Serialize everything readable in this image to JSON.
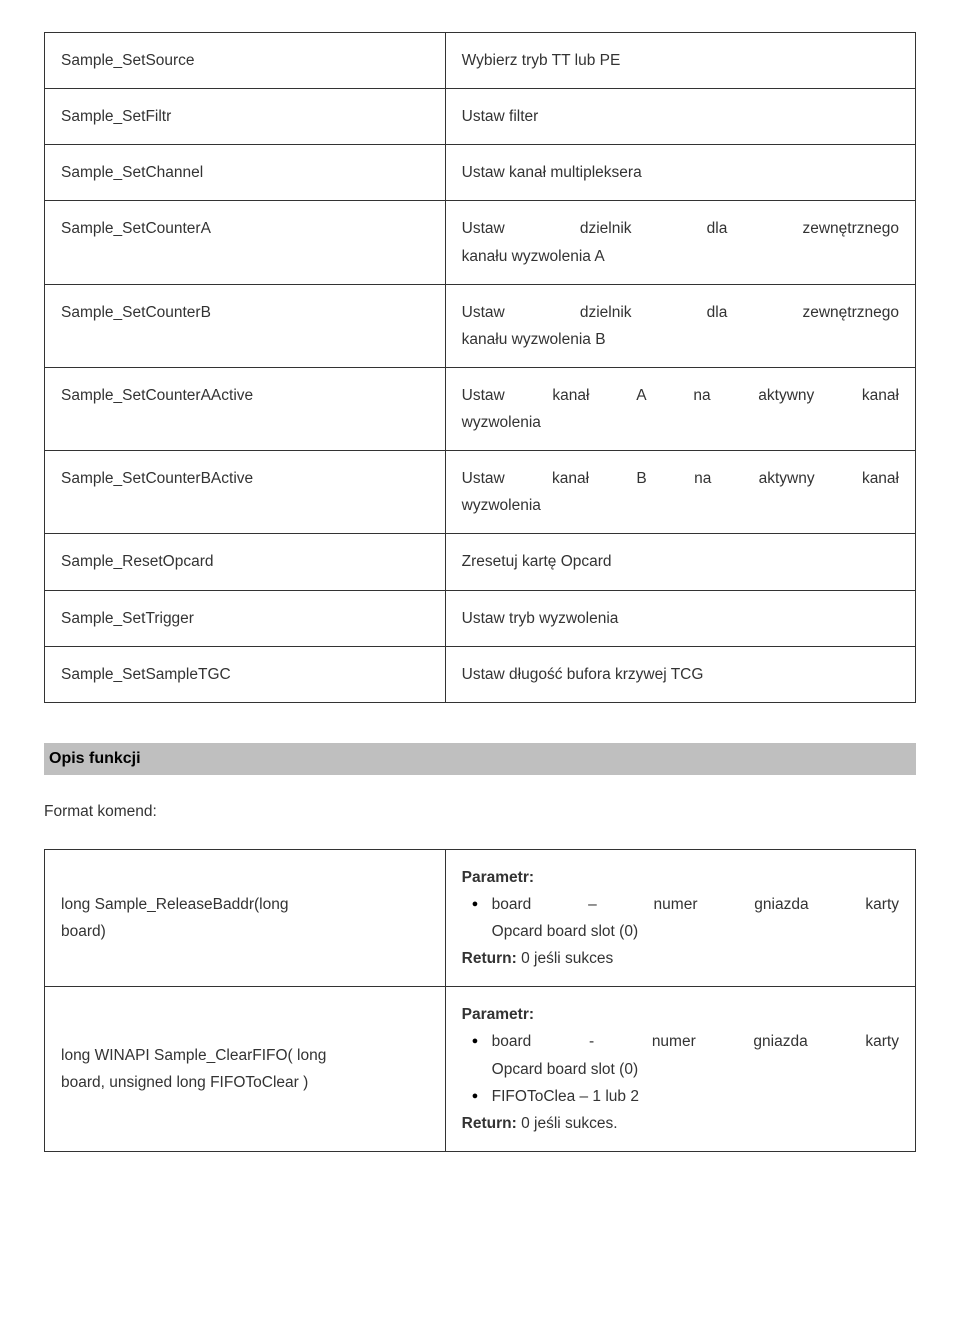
{
  "tableA": {
    "border_color": "#333333",
    "text_color": "#333333",
    "font_family": "Verdana",
    "cell_padding": 14,
    "col_widths_pct": [
      46,
      54
    ],
    "rows": [
      {
        "l": "Sample_SetSource",
        "r_mode": "plain",
        "r": "Wybierz tryb TT lub PE"
      },
      {
        "l": "Sample_SetFiltr",
        "r_mode": "plain",
        "r": "Ustaw filter"
      },
      {
        "l": "Sample_SetChannel",
        "r_mode": "plain",
        "r": "Ustaw kanał multipleksera"
      },
      {
        "l": "Sample_SetCounterA",
        "r_mode": "two_line",
        "r1": "Ustaw dzielnik dla zewnętrznego",
        "r2": "kanału wyzwolenia A"
      },
      {
        "l": "Sample_SetCounterB",
        "r_mode": "two_line",
        "r1": "Ustaw dzielnik dla zewnętrznego",
        "r2": "kanału wyzwolenia B"
      },
      {
        "l": "Sample_SetCounterAActive",
        "r_mode": "two_line",
        "r1": "Ustaw kanał A na aktywny kanał",
        "r2": "wyzwolenia"
      },
      {
        "l": "Sample_SetCounterBActive",
        "r_mode": "two_line",
        "r1": "Ustaw kanał B na aktywny kanał",
        "r2": "wyzwolenia"
      },
      {
        "l": "Sample_ResetOpcard",
        "r_mode": "plain",
        "r": "Zresetuj kartę Opcard"
      },
      {
        "l": "Sample_SetTrigger",
        "r_mode": "plain",
        "r": "Ustaw tryb wyzwolenia"
      },
      {
        "l": "Sample_SetSampleTGC",
        "r_mode": "plain",
        "r": "Ustaw długość bufora krzywej TCG"
      }
    ]
  },
  "section": {
    "title": "Opis funkcji",
    "bg": "#bfbfbf",
    "fg": "#000000",
    "font_size": 16,
    "font_weight": "bold"
  },
  "subhead": "Format komend:",
  "tableB": {
    "rows": [
      {
        "l1": "long Sample_ReleaseBaddr(long",
        "l2": "board)",
        "param_label": "Parametr:",
        "bullets": [
          {
            "l1": "board – numer gniazda karty",
            "l2": "Opcard board slot (0)",
            "l1_justify": true
          }
        ],
        "return_label": "Return:",
        "return_text": " 0 jeśli sukces"
      },
      {
        "l1": "long WINAPI Sample_ClearFIFO( long",
        "l2": "board, unsigned long FIFOToClear )",
        "param_label": "Parametr:",
        "bullets": [
          {
            "l1": "board - numer gniazda karty",
            "l2": "Opcard board slot (0)",
            "l1_justify": true
          },
          {
            "l1": "FIFOToClea – 1 lub 2",
            "l2": null,
            "l1_justify": false
          }
        ],
        "return_label": "Return:",
        "return_text": " 0 jeśli sukces."
      }
    ]
  }
}
